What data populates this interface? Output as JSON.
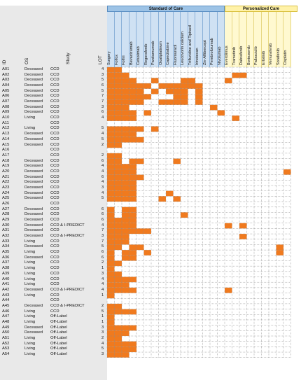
{
  "header": {
    "id_label": "ID",
    "os_label": "OS",
    "study_label": "Study",
    "lot_label": "LOT",
    "standard_of_care": "Standard of Care",
    "personalized_care": "Personalized Care"
  },
  "soc_drugs": [
    "Surgery",
    "Folfox",
    "Folfiri",
    "Bevacizumab",
    "Cetuximab",
    "Regorafenib",
    "Panitumumab",
    "Oxaliplatinum",
    "Capecitabine",
    "Fluorouracil",
    "Leucovorin calcium",
    "Trifluridine and Tipiracil",
    "Irinotecan",
    "Ziv-Aflibercept",
    "Pembrolizumab",
    "Nivolumab"
  ],
  "pc_drugs": [
    "Everolimus",
    "Trametinib",
    "Dabrafenib",
    "Bortezomib",
    "Palbociclib",
    "Erlotinib",
    "Vemurafenib",
    "Sorafenib",
    "Cisplatin"
  ],
  "colors": {
    "filled": "#f07a1e",
    "grid": "#8c8c8c",
    "soc_header": "#9dc3e6",
    "pc_header": "#fff2a8"
  },
  "patients": [
    {
      "id": "A01",
      "os": "Deceased",
      "study": "CCD",
      "lot": "4",
      "soc": "1100000000000000",
      "pc": "000000000"
    },
    {
      "id": "A02",
      "os": "Deceased",
      "study": "CCD",
      "lot": "3",
      "soc": "1110000000000000",
      "pc": "011000000"
    },
    {
      "id": "A03",
      "os": "Deceased",
      "study": "CCD",
      "lot": "5",
      "soc": "1111001000110000",
      "pc": "100000000"
    },
    {
      "id": "A04",
      "os": "Deceased",
      "study": "CCD",
      "lot": "6",
      "soc": "1111110111111000",
      "pc": "000000000"
    },
    {
      "id": "A05",
      "os": "Deceased",
      "study": "CCD",
      "lot": "5",
      "soc": "1111101011101000",
      "pc": "000000000"
    },
    {
      "id": "A06",
      "os": "Deceased",
      "study": "CCD",
      "lot": "7",
      "soc": "1111110001101000",
      "pc": "000000000"
    },
    {
      "id": "A07",
      "os": "Deceased",
      "study": "CCD",
      "lot": "7",
      "soc": "1111100111101000",
      "pc": "000000000"
    },
    {
      "id": "A08",
      "os": "Deceased",
      "study": "CCD",
      "lot": "3",
      "soc": "1110000000000010",
      "pc": "000000000"
    },
    {
      "id": "A09",
      "os": "Deceased",
      "study": "CCD",
      "lot": "6",
      "soc": "1111010000000001",
      "pc": "000000000"
    },
    {
      "id": "A10",
      "os": "Living",
      "study": "CCD",
      "lot": "4",
      "soc": "1111000000000000",
      "pc": "010000000"
    },
    {
      "id": "A11",
      "os": "",
      "study": "CCD",
      "lot": "",
      "soc": "0000000000000000",
      "pc": "000000000"
    },
    {
      "id": "A12",
      "os": "Living",
      "study": "CCD",
      "lot": "5",
      "soc": "1111101000000000",
      "pc": "000000000"
    },
    {
      "id": "A13",
      "os": "Deceased",
      "study": "CCD",
      "lot": "4",
      "soc": "1111000000000000",
      "pc": "000000000"
    },
    {
      "id": "A14",
      "os": "Deceased",
      "study": "CCD",
      "lot": "5",
      "soc": "1111100000000000",
      "pc": "000000000"
    },
    {
      "id": "A15",
      "os": "Deceased",
      "study": "CCD",
      "lot": "2",
      "soc": "1100000000000000",
      "pc": "000000000"
    },
    {
      "id": "A16",
      "os": "",
      "study": "CCD",
      "lot": "",
      "soc": "0000000000000000",
      "pc": "000000000"
    },
    {
      "id": "A17",
      "os": "",
      "study": "CCD",
      "lot": "2",
      "soc": "1100000000000000",
      "pc": "000000000"
    },
    {
      "id": "A18",
      "os": "Deceased",
      "study": "CCD",
      "lot": "6",
      "soc": "1101100001000000",
      "pc": "000000000"
    },
    {
      "id": "A19",
      "os": "Deceased",
      "study": "CCD",
      "lot": "4",
      "soc": "1111000000000000",
      "pc": "000000000"
    },
    {
      "id": "A20",
      "os": "Deceased",
      "study": "CCD",
      "lot": "4",
      "soc": "1111000000000000",
      "pc": "000000001"
    },
    {
      "id": "A21",
      "os": "Deceased",
      "study": "CCD",
      "lot": "6",
      "soc": "1111100000000000",
      "pc": "000000000"
    },
    {
      "id": "A22",
      "os": "Deceased",
      "study": "CCD",
      "lot": "4",
      "soc": "1111000000000000",
      "pc": "000000000"
    },
    {
      "id": "A23",
      "os": "Deceased",
      "study": "CCD",
      "lot": "3",
      "soc": "1111000000000000",
      "pc": "000000000"
    },
    {
      "id": "A24",
      "os": "Deceased",
      "study": "CCD",
      "lot": "4",
      "soc": "1111000010000000",
      "pc": "000000000"
    },
    {
      "id": "A25",
      "os": "Deceased",
      "study": "CCD",
      "lot": "5",
      "soc": "1111000101000000",
      "pc": "000000000"
    },
    {
      "id": "A26",
      "os": "",
      "study": "CCD",
      "lot": "",
      "soc": "0000000000000000",
      "pc": "000000000"
    },
    {
      "id": "A27",
      "os": "Deceased",
      "study": "CCD",
      "lot": "6",
      "soc": "1011000000000000",
      "pc": "000000000"
    },
    {
      "id": "A28",
      "os": "Deceased",
      "study": "CCD",
      "lot": "6",
      "soc": "1011000000100000",
      "pc": "000000000"
    },
    {
      "id": "A29",
      "os": "Deceased",
      "study": "CCD",
      "lot": "6",
      "soc": "1111000000000000",
      "pc": "000000000"
    },
    {
      "id": "A30",
      "os": "Deceased",
      "study": "CCD & I-PREDICT",
      "lot": "4",
      "soc": "1111000000000000",
      "pc": "101000000"
    },
    {
      "id": "A31",
      "os": "Deceased",
      "study": "CCD",
      "lot": "7",
      "soc": "1111110000000000",
      "pc": "000000000"
    },
    {
      "id": "A32",
      "os": "Deceased",
      "study": "CCD & I-PREDICT",
      "lot": "3",
      "soc": "1110000000000000",
      "pc": "001000000"
    },
    {
      "id": "A33",
      "os": "Living",
      "study": "CCD",
      "lot": "7",
      "soc": "1110000000000000",
      "pc": "000000000"
    },
    {
      "id": "A34",
      "os": "Deceased",
      "study": "CCD",
      "lot": "5",
      "soc": "1101100000000000",
      "pc": "000000010"
    },
    {
      "id": "A35",
      "os": "Living",
      "study": "CCD",
      "lot": "6",
      "soc": "1011010000000000",
      "pc": "000000010"
    },
    {
      "id": "A36",
      "os": "Deceased",
      "study": "CCD",
      "lot": "6",
      "soc": "1011000000000000",
      "pc": "000000000"
    },
    {
      "id": "A37",
      "os": "Living",
      "study": "CCD",
      "lot": "2",
      "soc": "1100000000000000",
      "pc": "000000000"
    },
    {
      "id": "A38",
      "os": "Living",
      "study": "CCD",
      "lot": "1",
      "soc": "1000000000000000",
      "pc": "000000000"
    },
    {
      "id": "A39",
      "os": "Living",
      "study": "CCD",
      "lot": "3",
      "soc": "1100000000000000",
      "pc": "000000000"
    },
    {
      "id": "A40",
      "os": "Living",
      "study": "CCD",
      "lot": "4",
      "soc": "1111000000000000",
      "pc": "000000000"
    },
    {
      "id": "A41",
      "os": "Living",
      "study": "CCD",
      "lot": "4",
      "soc": "1110000000000000",
      "pc": "000000000"
    },
    {
      "id": "A42",
      "os": "Deceased",
      "study": "CCD & I-PREDICT",
      "lot": "4",
      "soc": "1111000000000000",
      "pc": "100000000"
    },
    {
      "id": "A43",
      "os": "Living",
      "study": "CCD",
      "lot": "1",
      "soc": "1000000000000000",
      "pc": "000000000"
    },
    {
      "id": "A44",
      "os": "",
      "study": "CCD",
      "lot": "",
      "soc": "0000000000000000",
      "pc": "000000000"
    },
    {
      "id": "A45",
      "os": "Deceased",
      "study": "CCD & I-PREDICT",
      "lot": "2",
      "soc": "1100000000000000",
      "pc": "000000000"
    },
    {
      "id": "A46",
      "os": "Living",
      "study": "CCD",
      "lot": "5",
      "soc": "1111000000000000",
      "pc": "000000000"
    },
    {
      "id": "A47",
      "os": "Living",
      "study": "Off-Label",
      "lot": "1",
      "soc": "1000000000000000",
      "pc": "000000000"
    },
    {
      "id": "A48",
      "os": "Living",
      "study": "Off-Label",
      "lot": "1",
      "soc": "1000000000000000",
      "pc": "000000000"
    },
    {
      "id": "A49",
      "os": "Deceased",
      "study": "Off-Label",
      "lot": "3",
      "soc": "1111000000000000",
      "pc": "000000000"
    },
    {
      "id": "A50",
      "os": "Deceased",
      "study": "Off-Label",
      "lot": "3",
      "soc": "1110000000000000",
      "pc": "000000000"
    },
    {
      "id": "A51",
      "os": "Living",
      "study": "Off-Label",
      "lot": "2",
      "soc": "1100000000000000",
      "pc": "000000000"
    },
    {
      "id": "A52",
      "os": "Living",
      "study": "Off-Label",
      "lot": "4",
      "soc": "1111000000000000",
      "pc": "000000000"
    },
    {
      "id": "A53",
      "os": "Living",
      "study": "Off-Label",
      "lot": "5",
      "soc": "1111000000000000",
      "pc": "000000000"
    },
    {
      "id": "A54",
      "os": "Living",
      "study": "Off-Label",
      "lot": "3",
      "soc": "1110000000000000",
      "pc": "000000000"
    }
  ]
}
